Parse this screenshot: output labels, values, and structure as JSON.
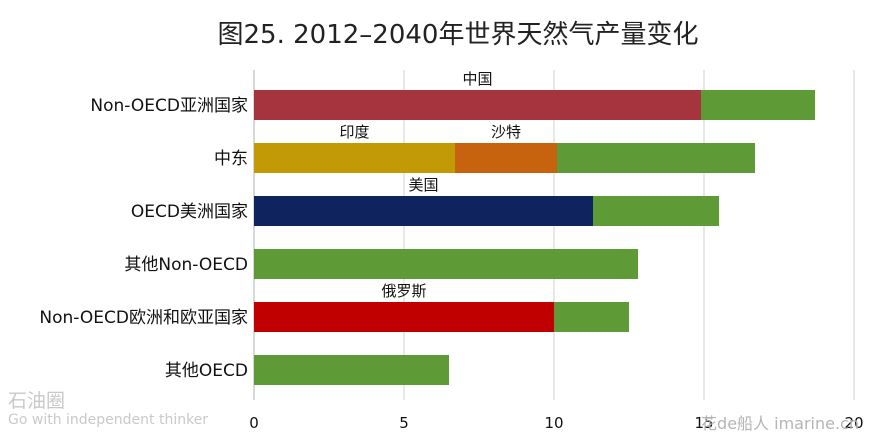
{
  "chart_data": {
    "type": "bar",
    "orientation": "horizontal",
    "stacked": true,
    "title": "图25. 2012–2040年世界天然气产量变化",
    "xlabel": "",
    "ylabel": "",
    "xlim": [
      0,
      20
    ],
    "x_ticks": [
      0,
      5,
      10,
      15,
      20
    ],
    "grid": "vertical",
    "categories": [
      "Non-OECD亚洲国家",
      "中东",
      "OECD美洲国家",
      "其他Non-OECD",
      "Non-OECD欧洲和欧亚国家",
      "其他OECD"
    ],
    "bars": [
      {
        "category": "Non-OECD亚洲国家",
        "segments": [
          {
            "label": "中国",
            "start": 0,
            "end": 14.9,
            "color": "#A5343F"
          },
          {
            "label": "",
            "start": 14.9,
            "end": 18.7,
            "color": "#5E9A35"
          }
        ]
      },
      {
        "category": "中东",
        "segments": [
          {
            "label": "印度",
            "start": 0,
            "end": 6.7,
            "color": "#C29A06"
          },
          {
            "label": "沙特",
            "start": 6.7,
            "end": 10.1,
            "color": "#C7620F"
          },
          {
            "label": "",
            "start": 10.1,
            "end": 16.7,
            "color": "#5E9A35"
          }
        ]
      },
      {
        "category": "OECD美洲国家",
        "segments": [
          {
            "label": "美国",
            "start": 0,
            "end": 11.3,
            "color": "#0F235E"
          },
          {
            "label": "",
            "start": 11.3,
            "end": 15.5,
            "color": "#5E9A35"
          }
        ]
      },
      {
        "category": "其他Non-OECD",
        "segments": [
          {
            "label": "",
            "start": 0,
            "end": 12.8,
            "color": "#5E9A35"
          }
        ]
      },
      {
        "category": "Non-OECD欧洲和欧亚国家",
        "segments": [
          {
            "label": "俄罗斯",
            "start": 0,
            "end": 10.0,
            "color": "#C00000"
          },
          {
            "label": "",
            "start": 10.0,
            "end": 12.5,
            "color": "#5E9A35"
          }
        ]
      },
      {
        "category": "其他OECD",
        "segments": [
          {
            "label": "",
            "start": 0,
            "end": 6.5,
            "color": "#5E9A35"
          }
        ]
      }
    ]
  },
  "watermarks": {
    "left_title": "石油圈",
    "left_sub": "Go with independent thinker",
    "right": "花de船人 imarine.cn"
  }
}
